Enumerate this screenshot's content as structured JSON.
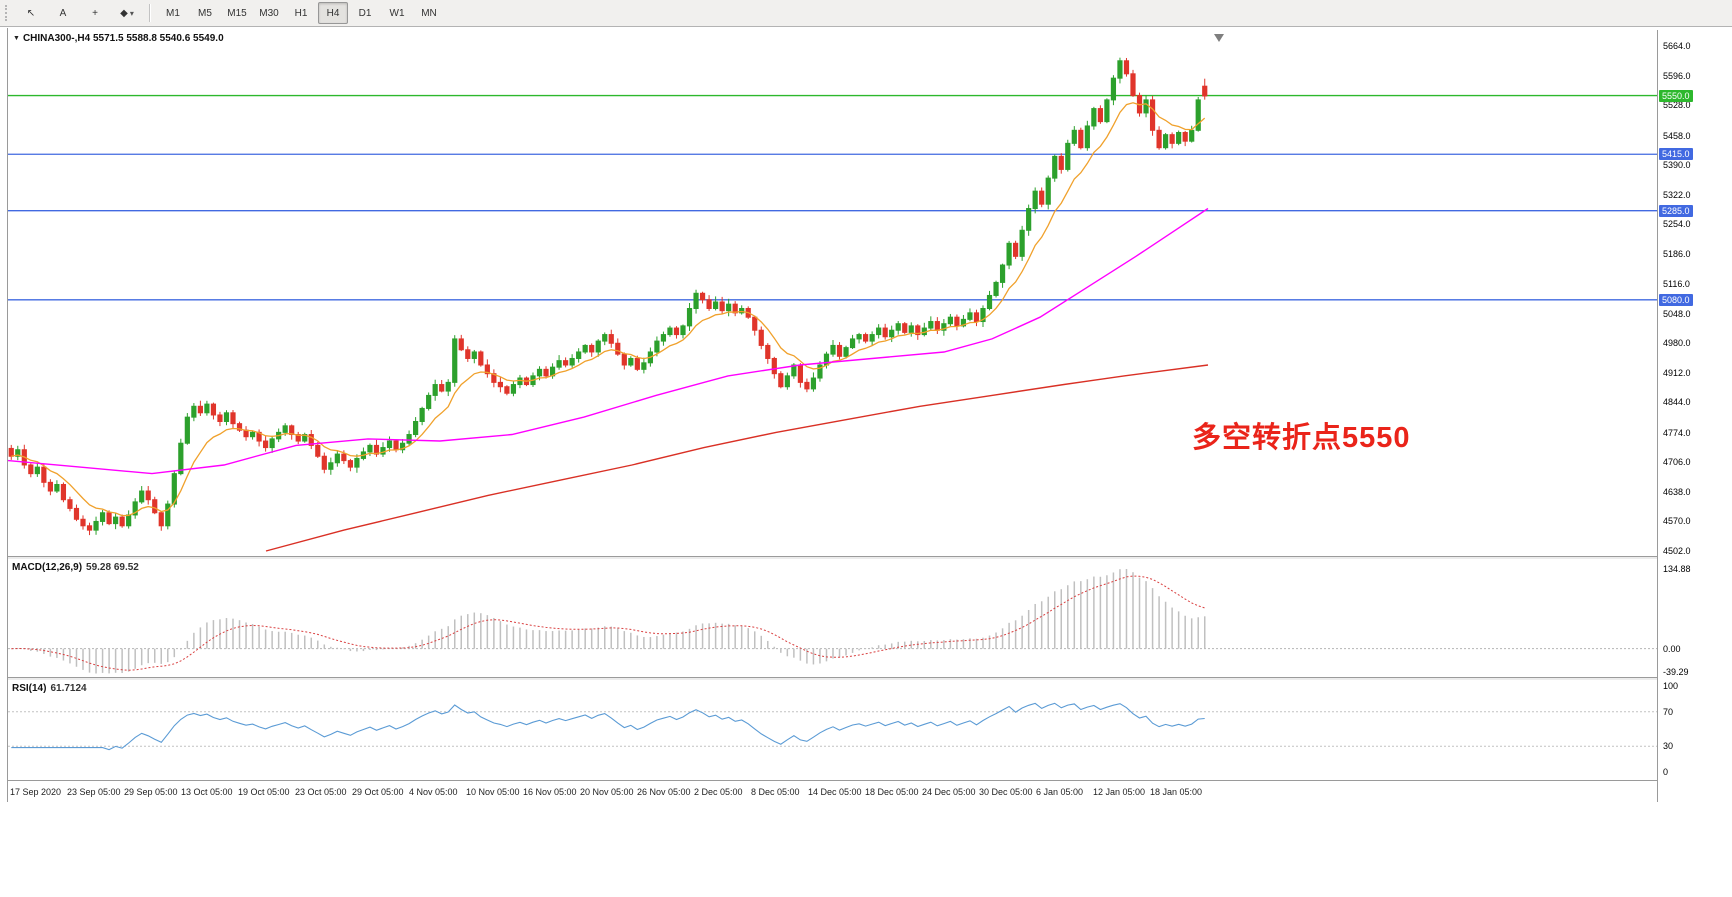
{
  "toolbar": {
    "tools": [
      {
        "name": "cursor-tool",
        "glyph": "↖"
      },
      {
        "name": "text-tool",
        "glyph": "A"
      },
      {
        "name": "crosshair-tool",
        "glyph": "+"
      },
      {
        "name": "shapes-tool",
        "glyph": "◆",
        "arrow": true
      }
    ],
    "timeframes": [
      {
        "label": "M1"
      },
      {
        "label": "M5"
      },
      {
        "label": "M15"
      },
      {
        "label": "M30"
      },
      {
        "label": "H1"
      },
      {
        "label": "H4",
        "selected": true
      },
      {
        "label": "D1"
      },
      {
        "label": "W1"
      },
      {
        "label": "MN"
      }
    ]
  },
  "chart": {
    "symbol_title": "CHINA300-,H4 5571.5 5588.8 5540.6 5549.0",
    "collapse_glyph": "▼",
    "annotation_text": "多空转折点5550",
    "annotation_color": "#ea241a"
  },
  "chart_data": [
    {
      "type": "candlestick",
      "symbol": "CHINA300",
      "timeframe": "H4",
      "ylim": [
        4502,
        5664
      ],
      "y_ticks": [
        "5664.0",
        "5596.0",
        "5528.0",
        "5458.0",
        "5390.0",
        "5322.0",
        "5254.0",
        "5186.0",
        "5116.0",
        "5048.0",
        "4980.0",
        "4912.0",
        "4844.0",
        "4774.0",
        "4706.0",
        "4638.0",
        "4570.0",
        "4502.0"
      ],
      "x_labels": [
        "17 Sep 2020",
        "23 Sep 05:00",
        "29 Sep 05:00",
        "13 Oct 05:00",
        "19 Oct 05:00",
        "23 Oct 05:00",
        "29 Oct 05:00",
        "4 Nov 05:00",
        "10 Nov 05:00",
        "16 Nov 05:00",
        "20 Nov 05:00",
        "26 Nov 05:00",
        "2 Dec 05:00",
        "8 Dec 05:00",
        "14 Dec 05:00",
        "18 Dec 05:00",
        "24 Dec 05:00",
        "30 Dec 05:00",
        "6 Jan 05:00",
        "12 Jan 05:00",
        "18 Jan 05:00"
      ],
      "colors": {
        "up": "#2ca02c",
        "down": "#e0352b"
      },
      "hlines": [
        {
          "price": 5550,
          "label": "5550.0",
          "color": "#2db82d"
        },
        {
          "price": 5415,
          "label": "5415.0",
          "color": "#4169e1"
        },
        {
          "price": 5285,
          "label": "5285.0",
          "color": "#4169e1"
        },
        {
          "price": 5080,
          "label": "5080.0",
          "color": "#4169e1"
        }
      ],
      "last_candle": {
        "open": 5571.5,
        "high": 5588.8,
        "low": 5540.6,
        "close": 5549.0
      },
      "closes": [
        4720,
        4735,
        4700,
        4680,
        4695,
        4660,
        4640,
        4655,
        4620,
        4600,
        4575,
        4560,
        4550,
        4570,
        4590,
        4565,
        4580,
        4560,
        4585,
        4615,
        4640,
        4620,
        4590,
        4560,
        4610,
        4680,
        4750,
        4810,
        4835,
        4820,
        4840,
        4815,
        4800,
        4820,
        4795,
        4780,
        4765,
        4775,
        4755,
        4740,
        4760,
        4775,
        4790,
        4770,
        4755,
        4770,
        4745,
        4720,
        4690,
        4705,
        4725,
        4710,
        4695,
        4715,
        4730,
        4745,
        4725,
        4740,
        4755,
        4735,
        4750,
        4770,
        4800,
        4830,
        4860,
        4885,
        4870,
        4890,
        4990,
        4965,
        4945,
        4960,
        4930,
        4910,
        4890,
        4880,
        4865,
        4885,
        4900,
        4885,
        4905,
        4920,
        4905,
        4925,
        4940,
        4930,
        4945,
        4960,
        4975,
        4960,
        4985,
        5000,
        4980,
        4955,
        4930,
        4945,
        4920,
        4935,
        4960,
        4985,
        5000,
        5015,
        5000,
        5020,
        5060,
        5095,
        5080,
        5060,
        5075,
        5055,
        5070,
        5050,
        5060,
        5040,
        5010,
        4975,
        4945,
        4910,
        4880,
        4905,
        4930,
        4890,
        4875,
        4900,
        4930,
        4955,
        4975,
        4950,
        4970,
        4990,
        5000,
        4985,
        5000,
        5015,
        4995,
        5010,
        5025,
        5005,
        5020,
        5000,
        5015,
        5030,
        5010,
        5025,
        5040,
        5020,
        5035,
        5050,
        5030,
        5060,
        5090,
        5120,
        5160,
        5210,
        5180,
        5240,
        5290,
        5330,
        5300,
        5360,
        5410,
        5380,
        5440,
        5470,
        5430,
        5480,
        5520,
        5490,
        5540,
        5590,
        5630,
        5600,
        5550,
        5510,
        5540,
        5470,
        5430,
        5460,
        5440,
        5465,
        5445,
        5470,
        5540,
        5549
      ],
      "ma_lines": [
        {
          "name": "ma-fast",
          "color": "#f0a12c",
          "period": 9
        },
        {
          "name": "ma-medium",
          "color": "#ff00ff",
          "anchors": [
            [
              0,
              4710
            ],
            [
              0.06,
              4695
            ],
            [
              0.12,
              4680
            ],
            [
              0.18,
              4700
            ],
            [
              0.24,
              4745
            ],
            [
              0.3,
              4760
            ],
            [
              0.36,
              4755
            ],
            [
              0.42,
              4770
            ],
            [
              0.48,
              4810
            ],
            [
              0.54,
              4860
            ],
            [
              0.6,
              4905
            ],
            [
              0.66,
              4930
            ],
            [
              0.72,
              4945
            ],
            [
              0.78,
              4960
            ],
            [
              0.82,
              4990
            ],
            [
              0.86,
              5040
            ],
            [
              0.9,
              5110
            ],
            [
              0.94,
              5180
            ],
            [
              0.97,
              5235
            ],
            [
              1,
              5290
            ]
          ]
        },
        {
          "name": "ma-slow",
          "color": "#d93025",
          "anchors": [
            [
              0.215,
              4502
            ],
            [
              0.28,
              4550
            ],
            [
              0.34,
              4590
            ],
            [
              0.4,
              4630
            ],
            [
              0.46,
              4665
            ],
            [
              0.52,
              4700
            ],
            [
              0.58,
              4740
            ],
            [
              0.64,
              4775
            ],
            [
              0.7,
              4805
            ],
            [
              0.76,
              4835
            ],
            [
              0.82,
              4860
            ],
            [
              0.88,
              4885
            ],
            [
              0.93,
              4905
            ],
            [
              1,
              4930
            ]
          ]
        }
      ]
    },
    {
      "type": "macd",
      "title": "MACD(12,26,9)",
      "values_label": "59.28 69.52",
      "params": [
        12,
        26,
        9
      ],
      "y_ticks": [
        "134.88",
        "0.00",
        "-39.29"
      ],
      "histogram_color": "#c0c0c0",
      "signal_color": "#d94040"
    },
    {
      "type": "rsi",
      "title": "RSI(14)",
      "value_label": "61.7124",
      "period": 14,
      "levels": [
        "100",
        "70",
        "30",
        "0"
      ],
      "line_color": "#5b9bd5"
    }
  ]
}
